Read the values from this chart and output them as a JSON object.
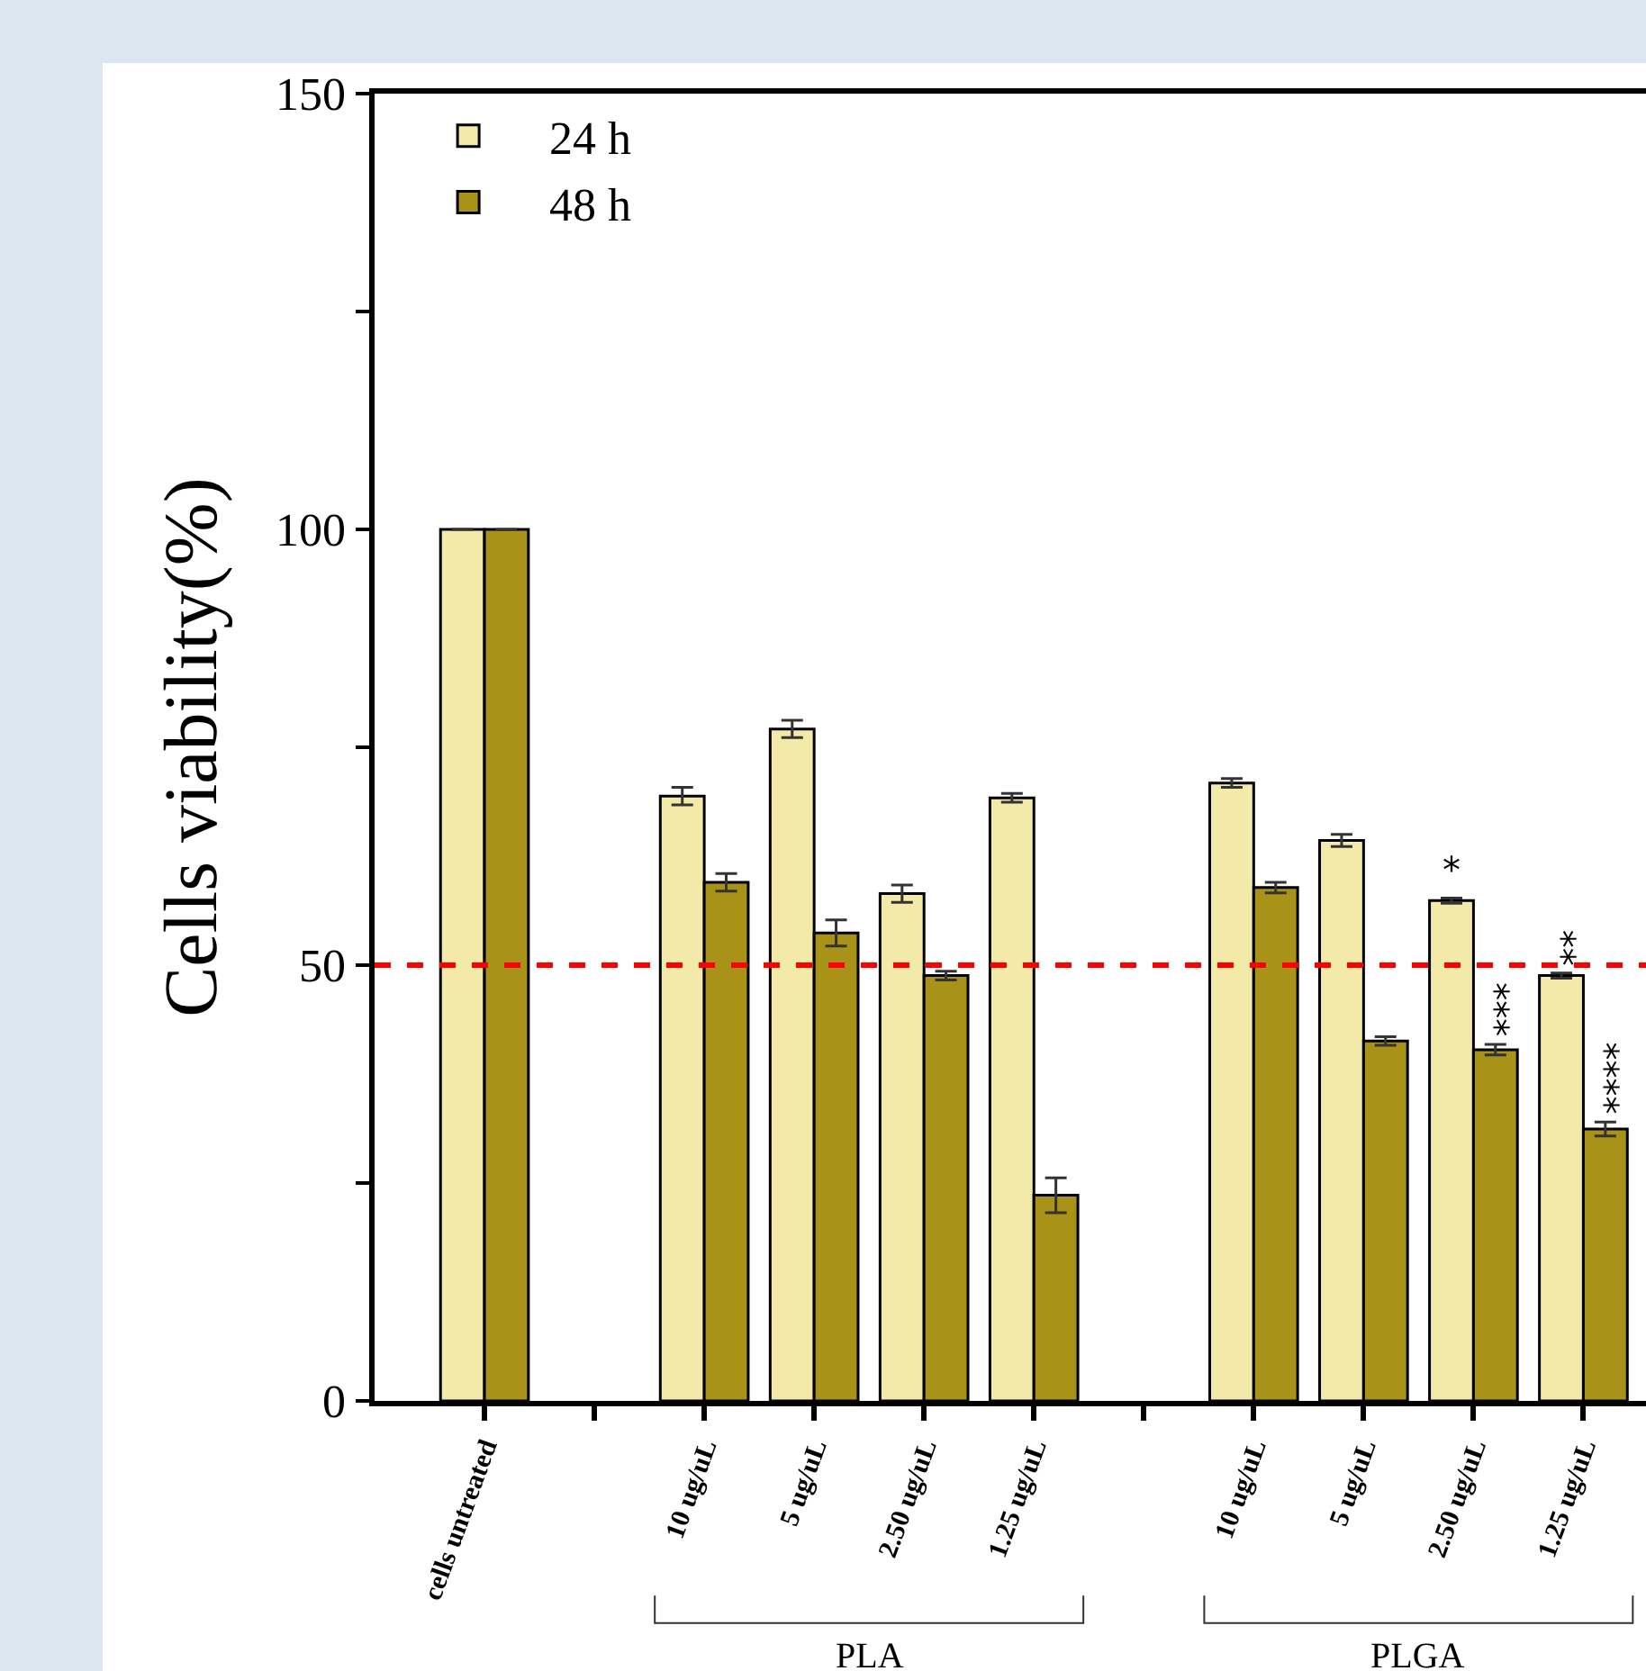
{
  "chart_data": {
    "type": "bar",
    "ylabel": "Cells viability(%)",
    "categories": [
      "cells untreated",
      null,
      "10 ug/uL",
      "5 ug/uL",
      "2.50 ug/uL",
      "1.25 ug/uL",
      null,
      "10 ug/uL",
      "5 ug/uL",
      "2.50 ug/uL",
      "1.25 ug/uL"
    ],
    "series": [
      {
        "name": "24 h",
        "color": "#f3e9a9",
        "values": [
          100,
          null,
          69.4,
          77.1,
          58.2,
          69.2,
          null,
          70.9,
          64.3,
          57.4,
          48.8
        ],
        "errors": [
          null,
          null,
          1,
          1,
          1,
          0.5,
          null,
          0.5,
          0.7,
          0.3,
          0.3
        ],
        "value_labels": [
          null,
          null,
          null,
          null,
          null,
          null,
          null,
          null,
          null,
          "*",
          "**"
        ]
      },
      {
        "name": "48 h",
        "color": "#a89318",
        "values": [
          100,
          null,
          59.5,
          53.7,
          48.8,
          23.6,
          null,
          58.9,
          41.3,
          40.3,
          31.2
        ],
        "errors": [
          null,
          null,
          1,
          1.5,
          0.5,
          2,
          null,
          0.6,
          0.5,
          0.6,
          0.8
        ],
        "value_labels": [
          null,
          null,
          null,
          null,
          null,
          null,
          null,
          null,
          null,
          "***",
          "****"
        ]
      }
    ],
    "ylim": [
      0,
      150
    ],
    "yticks": [
      0,
      {
        "value": 25,
        "label": null
      },
      50,
      {
        "value": 75,
        "label": null
      },
      100,
      {
        "value": 125,
        "label": null
      },
      150
    ],
    "ref_lines": [
      {
        "axis": "y",
        "value": 50,
        "color": "#ff0000",
        "line_style": "dashed"
      }
    ],
    "annotations": [
      "PLA",
      "PLGA"
    ],
    "legend": "top left",
    "grid": false
  }
}
